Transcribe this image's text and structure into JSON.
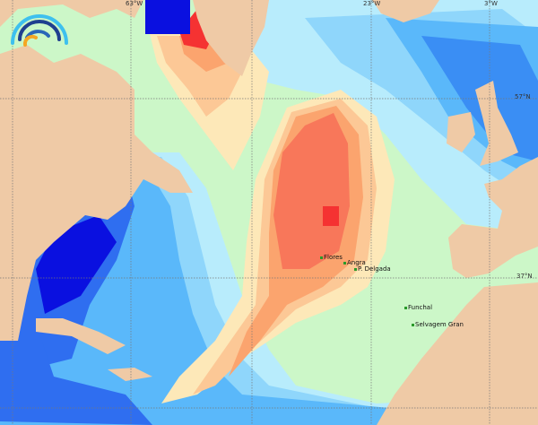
{
  "map": {
    "grid_labels": {
      "lon": [
        "63°W",
        "23°W",
        "3°W"
      ],
      "lat": [
        "57°N",
        "37°N"
      ]
    },
    "places": [
      "Flores",
      "Angra",
      "P. Delgada",
      "Funchal",
      "Selvagem Gran"
    ],
    "colors": {
      "land": "#efcaa6",
      "ice_white": "#ffffff",
      "deep_blue": "#0a10e0",
      "blue": "#2f6ef0",
      "mid_blue": "#5ab8fa",
      "light_blue": "#b8ecfc",
      "pale_cyan": "#d0fafc",
      "pale_green": "#ccf7c8",
      "pale_yellow": "#fde8b8",
      "light_orange": "#fcc896",
      "orange": "#fba46e",
      "red_orange": "#f8775a",
      "red": "#f53232"
    },
    "logo": "wave-arcs-logo"
  }
}
